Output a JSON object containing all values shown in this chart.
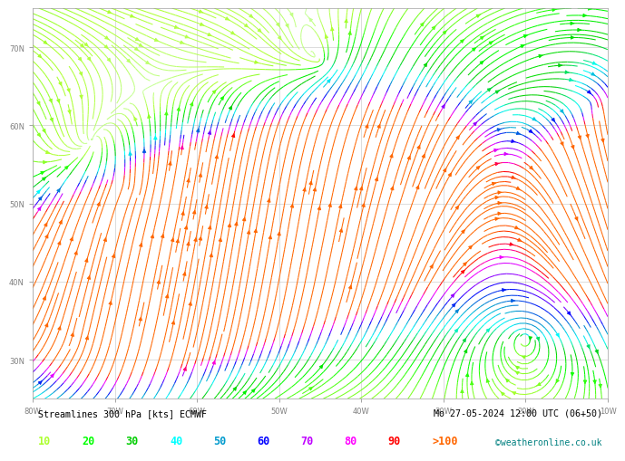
{
  "title_left": "Streamlines 300 hPa [kts] ECMWF",
  "title_right": "Mo 27-05-2024 12:00 UTC (06+50)",
  "credit": "©weatheronline.co.uk",
  "legend_values": [
    "10",
    "20",
    "30",
    "40",
    "50",
    "60",
    "70",
    "80",
    "90",
    ">100"
  ],
  "legend_colors": [
    "#adff2f",
    "#00ff00",
    "#00cd00",
    "#00ffff",
    "#009acd",
    "#0000ff",
    "#bf00ff",
    "#ff00ff",
    "#ff0000",
    "#ff6600"
  ],
  "background_color": "#ffffff",
  "axis_label_color": "#808080",
  "lon_min": -80,
  "lon_max": -10,
  "lat_min": 25,
  "lat_max": 75,
  "lon_ticks": [
    -80,
    -70,
    -60,
    -50,
    -40,
    -30,
    -20,
    -10
  ],
  "lat_ticks": [
    30,
    40,
    50,
    60,
    70
  ],
  "grid_color": "#a0a0a0",
  "grid_alpha": 0.5
}
